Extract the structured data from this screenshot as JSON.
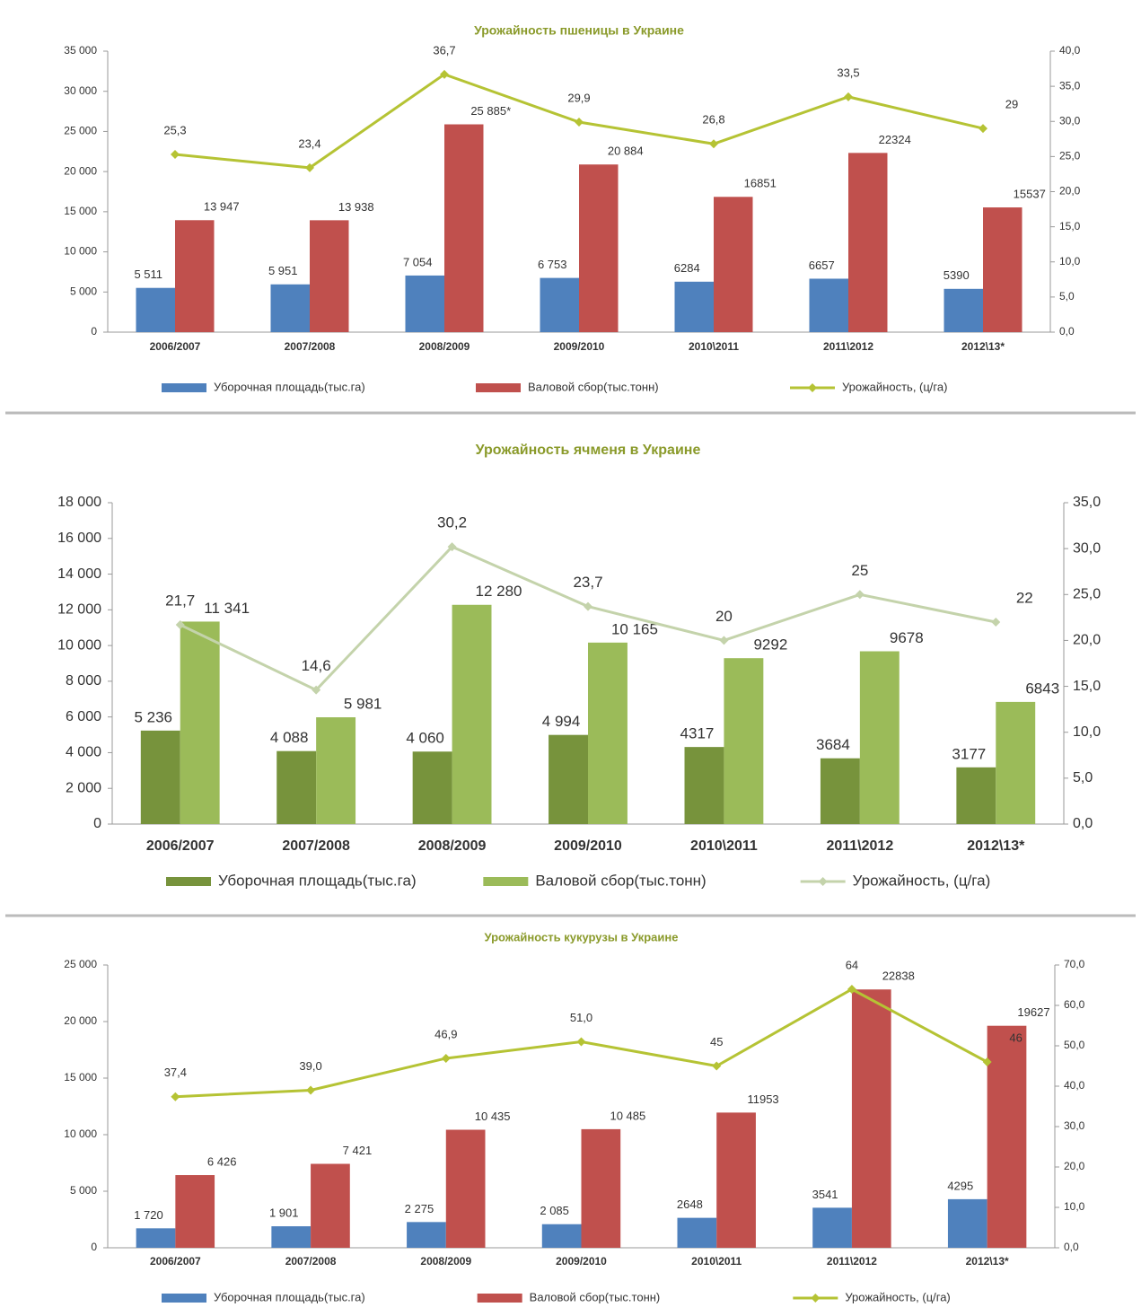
{
  "chart_data": [
    {
      "type": "bar",
      "title": "Урожайность пшеницы в Украине",
      "categories": [
        "2006/2007",
        "2007/2008",
        "2008/2009",
        "2009/2010",
        "2010\\2011",
        "2011\\2012",
        "2012\\13*"
      ],
      "series": [
        {
          "name": "Уборочная площадь(тыс.га)",
          "color": "#4f81bd",
          "values": [
            5511,
            5951,
            7054,
            6753,
            6284,
            6657,
            5390
          ],
          "value_labels": [
            "5 511",
            "5 951",
            "7 054",
            "6 753",
            "6284",
            "6657",
            "5390"
          ]
        },
        {
          "name": "Валовой сбор(тыс.тонн)",
          "color": "#c0504d",
          "values": [
            13947,
            13938,
            25885,
            20884,
            16851,
            22324,
            15537
          ],
          "value_labels": [
            "13 947",
            "13 938",
            "25 885*",
            "20 884",
            "16851",
            "22324",
            "15537"
          ]
        },
        {
          "name": "Урожайность, (ц/га)",
          "color": "#b5c334",
          "type": "line",
          "axis": "y2",
          "values": [
            25.3,
            23.4,
            36.7,
            29.9,
            26.8,
            33.5,
            29
          ],
          "value_labels": [
            "25,3",
            "23,4",
            "36,7",
            "29,9",
            "26,8",
            "33,5",
            "29"
          ]
        }
      ],
      "ylim": [
        0,
        35000
      ],
      "yticks": [
        0,
        {
          "value": 5000,
          "label": "5 000"
        },
        {
          "value": 10000,
          "label": "10 000"
        },
        {
          "value": 15000,
          "label": "15 000"
        },
        {
          "value": 20000,
          "label": "20 000"
        },
        {
          "value": 25000,
          "label": "25 000"
        },
        {
          "value": 30000,
          "label": "30 000"
        },
        {
          "value": 35000,
          "label": "35 000"
        }
      ],
      "y2lim": [
        0,
        40
      ],
      "y2ticks": [
        {
          "value": 0,
          "label": "0,0"
        },
        {
          "value": 5,
          "label": "5,0"
        },
        {
          "value": 10,
          "label": "10,0"
        },
        {
          "value": 15,
          "label": "15,0"
        },
        {
          "value": 20,
          "label": "20,0"
        },
        {
          "value": 25,
          "label": "25,0"
        },
        {
          "value": 30,
          "label": "30,0"
        },
        {
          "value": 35,
          "label": "35,0"
        },
        {
          "value": 40,
          "label": "40,0"
        }
      ],
      "legend": "bottom"
    },
    {
      "type": "bar",
      "title": "Урожайность ячменя в Украине",
      "categories": [
        "2006/2007",
        "2007/2008",
        "2008/2009",
        "2009/2010",
        "2010\\2011",
        "2011\\2012",
        "2012\\13*"
      ],
      "series": [
        {
          "name": "Уборочная площадь(тыс.га)",
          "color": "#77933c",
          "values": [
            5236,
            4088,
            4060,
            4994,
            4317,
            3684,
            3177
          ],
          "value_labels": [
            "5 236",
            "4 088",
            "4 060",
            "4 994",
            "4317",
            "3684",
            "3177"
          ]
        },
        {
          "name": "Валовой сбор(тыс.тонн)",
          "color": "#9bbb59",
          "values": [
            11341,
            5981,
            12280,
            10165,
            9292,
            9678,
            6843
          ],
          "value_labels": [
            "11 341",
            "5 981",
            "12 280",
            "10 165",
            "9292",
            "9678",
            "6843"
          ]
        },
        {
          "name": "Урожайность, (ц/га)",
          "color": "#c4d3ab",
          "type": "line",
          "axis": "y2",
          "values": [
            21.7,
            14.6,
            30.2,
            23.7,
            20,
            25,
            22
          ],
          "value_labels": [
            "21,7",
            "14,6",
            "30,2",
            "23,7",
            "20",
            "25",
            "22"
          ]
        }
      ],
      "ylim": [
        0,
        18000
      ],
      "yticks": [
        0,
        {
          "value": 2000,
          "label": "2 000"
        },
        {
          "value": 4000,
          "label": "4 000"
        },
        {
          "value": 6000,
          "label": "6 000"
        },
        {
          "value": 8000,
          "label": "8 000"
        },
        {
          "value": 10000,
          "label": "10 000"
        },
        {
          "value": 12000,
          "label": "12 000"
        },
        {
          "value": 14000,
          "label": "14 000"
        },
        {
          "value": 16000,
          "label": "16 000"
        },
        {
          "value": 18000,
          "label": "18 000"
        }
      ],
      "y2lim": [
        0,
        35
      ],
      "y2ticks": [
        {
          "value": 0,
          "label": "0,0"
        },
        {
          "value": 5,
          "label": "5,0"
        },
        {
          "value": 10,
          "label": "10,0"
        },
        {
          "value": 15,
          "label": "15,0"
        },
        {
          "value": 20,
          "label": "20,0"
        },
        {
          "value": 25,
          "label": "25,0"
        },
        {
          "value": 30,
          "label": "30,0"
        },
        {
          "value": 35,
          "label": "35,0"
        }
      ],
      "legend": "bottom"
    },
    {
      "type": "bar",
      "title": "Урожайность кукурузы в Украине",
      "categories": [
        "2006/2007",
        "2007/2008",
        "2008/2009",
        "2009/2010",
        "2010\\2011",
        "2011\\2012",
        "2012\\13*"
      ],
      "series": [
        {
          "name": "Уборочная площадь(тыс.га)",
          "color": "#4f81bd",
          "values": [
            1720,
            1901,
            2275,
            2085,
            2648,
            3541,
            4295
          ],
          "value_labels": [
            "1 720",
            "1 901",
            "2 275",
            "2 085",
            "2648",
            "3541",
            "4295"
          ]
        },
        {
          "name": "Валовой сбор(тыс.тонн)",
          "color": "#c0504d",
          "values": [
            6426,
            7421,
            10435,
            10485,
            11953,
            22838,
            19627
          ],
          "value_labels": [
            "6 426",
            "7 421",
            "10 435",
            "10 485",
            "11953",
            "22838",
            "19627"
          ]
        },
        {
          "name": "Урожайность, (ц/га)",
          "color": "#b5c334",
          "type": "line",
          "axis": "y2",
          "values": [
            37.4,
            39,
            46.9,
            51,
            45,
            64,
            46
          ],
          "value_labels": [
            "37,4",
            "39,0",
            "46,9",
            "51,0",
            "45",
            "64",
            "46"
          ]
        }
      ],
      "ylim": [
        0,
        25000
      ],
      "yticks": [
        0,
        {
          "value": 5000,
          "label": "5 000"
        },
        {
          "value": 10000,
          "label": "10 000"
        },
        {
          "value": 15000,
          "label": "15 000"
        },
        {
          "value": 20000,
          "label": "20 000"
        },
        {
          "value": 25000,
          "label": "25 000"
        }
      ],
      "y2lim": [
        0,
        70
      ],
      "y2ticks": [
        {
          "value": 0,
          "label": "0,0"
        },
        {
          "value": 10,
          "label": "10,0"
        },
        {
          "value": 20,
          "label": "20,0"
        },
        {
          "value": 30,
          "label": "30,0"
        },
        {
          "value": 40,
          "label": "40,0"
        },
        {
          "value": 50,
          "label": "50,0"
        },
        {
          "value": 60,
          "label": "60,0"
        },
        {
          "value": 70,
          "label": "70,0"
        }
      ],
      "legend": "bottom"
    }
  ]
}
